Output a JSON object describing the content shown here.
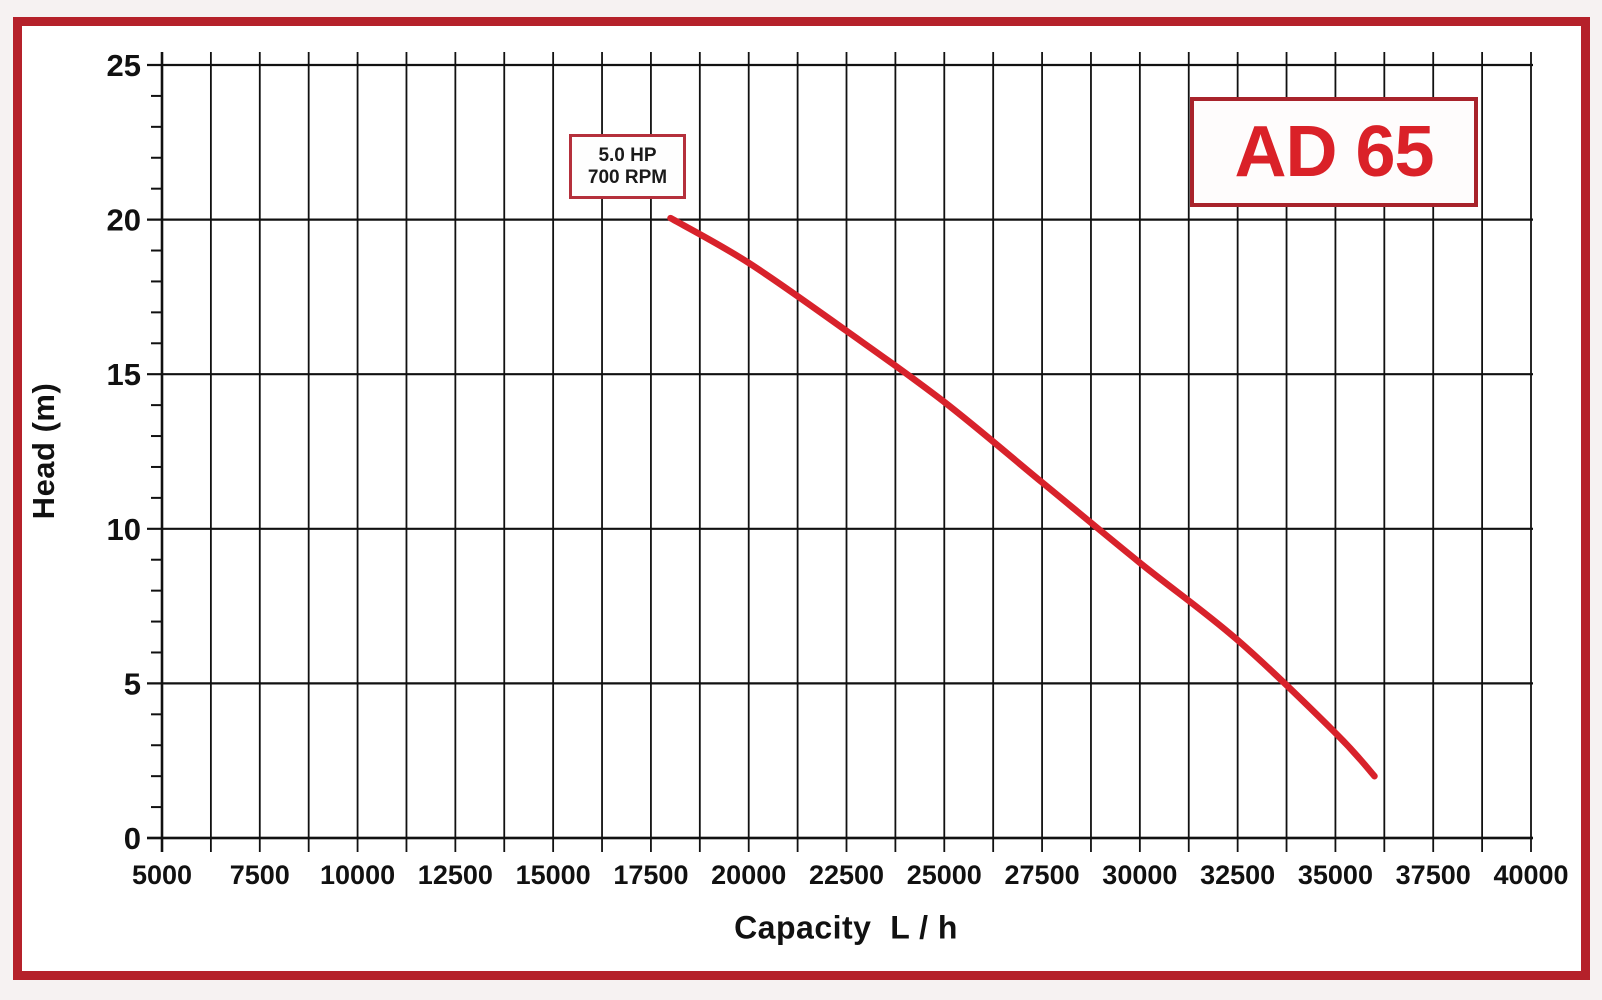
{
  "frame": {
    "border_color": "#b5212a",
    "page_background": "#f6f2f2",
    "inner_background": "#ffffff"
  },
  "model_badge": {
    "label": "AD 65",
    "text_color": "#da2128",
    "border_color": "#a8232b"
  },
  "callout": {
    "line1": "5.0 HP",
    "line2": "700 RPM",
    "border_color": "#b5303c"
  },
  "chart_data": {
    "type": "line",
    "title": "",
    "xlabel": "Capacity  L / h",
    "ylabel": "Head (m)",
    "xlim": [
      5000,
      40000
    ],
    "ylim": [
      0,
      25
    ],
    "x_tick_values": [
      5000,
      7500,
      10000,
      12500,
      15000,
      17500,
      20000,
      22500,
      25000,
      27500,
      30000,
      32500,
      35000,
      37500,
      40000
    ],
    "x_tick_labels": [
      "5000",
      "7500",
      "10000",
      "12500",
      "15000",
      "17500",
      "20000",
      "22500",
      "25000",
      "27500",
      "30000",
      "32500",
      "35000",
      "37500",
      "40000"
    ],
    "x_minor_step": 1250,
    "y_tick_values": [
      0,
      5,
      10,
      15,
      20,
      25
    ],
    "y_tick_labels": [
      "0",
      "5",
      "10",
      "15",
      "20",
      "25"
    ],
    "y_minor_step": 1,
    "grid": {
      "vertical_gridlines_every": 1250,
      "horizontal_gridlines_every": 5,
      "color": "#111111"
    },
    "legend": "none",
    "series": [
      {
        "name": "AD 65 pump performance curve (5.0 HP, 700 RPM)",
        "color": "#d8222b",
        "x": [
          18000,
          20000,
          22500,
          25000,
          27500,
          30000,
          32500,
          35000,
          36000
        ],
        "y": [
          20.05,
          18.6,
          16.4,
          14.1,
          11.5,
          8.9,
          6.4,
          3.4,
          2.0
        ]
      }
    ]
  }
}
